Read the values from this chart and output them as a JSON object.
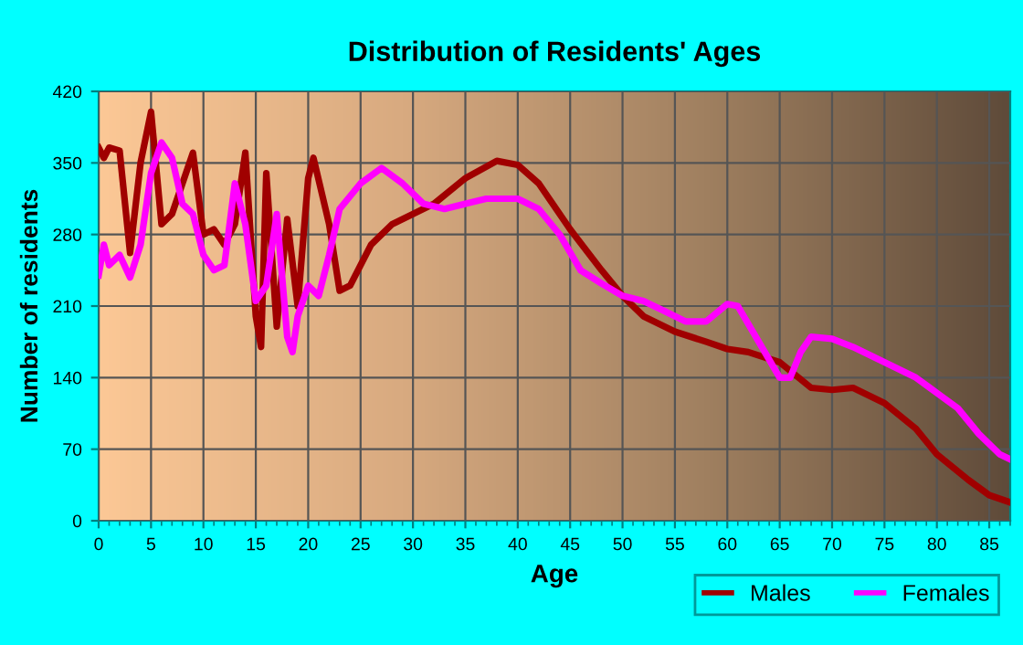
{
  "chart_data": {
    "type": "line",
    "title": "Distribution of Residents' Ages",
    "xlabel": "Age",
    "ylabel": "Number of residents",
    "xlim": [
      0,
      87
    ],
    "xticks": [
      0,
      5,
      10,
      15,
      20,
      25,
      30,
      35,
      40,
      45,
      50,
      55,
      60,
      65,
      70,
      75,
      80,
      85
    ],
    "ylim": [
      0,
      420
    ],
    "yticks": [
      0,
      70,
      140,
      210,
      280,
      350,
      420
    ],
    "grid": true,
    "legend": "bottom right",
    "line_style": "solid",
    "series": [
      {
        "name": "Males",
        "color": "#a00000",
        "x": [
          0,
          0.5,
          1,
          2,
          3,
          4,
          5,
          6,
          7,
          8,
          9,
          10,
          11,
          12,
          13,
          14,
          15,
          15.5,
          16,
          17,
          18,
          19,
          20,
          20.5,
          22,
          23,
          24,
          26,
          28,
          30,
          32,
          35,
          38,
          40,
          42,
          45,
          48,
          50,
          52,
          55,
          58,
          60,
          62,
          65,
          68,
          70,
          72,
          75,
          78,
          80,
          83,
          85,
          87
        ],
        "values": [
          365,
          355,
          365,
          362,
          262,
          350,
          400,
          290,
          300,
          330,
          360,
          280,
          285,
          270,
          290,
          360,
          200,
          170,
          340,
          190,
          295,
          210,
          335,
          355,
          290,
          225,
          230,
          270,
          290,
          300,
          310,
          335,
          352,
          348,
          330,
          285,
          245,
          220,
          200,
          185,
          175,
          168,
          165,
          155,
          130,
          128,
          130,
          115,
          90,
          65,
          40,
          25,
          18
        ]
      },
      {
        "name": "Females",
        "color": "#ff00ff",
        "x": [
          0,
          0.5,
          1,
          2,
          3,
          4,
          5,
          6,
          7,
          8,
          9,
          10,
          11,
          12,
          13,
          14,
          15,
          16,
          17,
          18,
          18.5,
          19,
          20,
          21,
          22,
          23,
          25,
          27,
          29,
          31,
          33,
          35,
          37,
          40,
          42,
          44,
          46,
          48,
          50,
          52,
          54,
          56,
          58,
          60,
          61,
          63,
          65,
          66,
          67,
          68,
          70,
          72,
          75,
          78,
          80,
          82,
          84,
          86,
          87
        ],
        "values": [
          240,
          270,
          250,
          260,
          238,
          270,
          340,
          370,
          355,
          310,
          300,
          260,
          245,
          250,
          330,
          290,
          215,
          230,
          300,
          180,
          165,
          200,
          230,
          220,
          260,
          305,
          330,
          345,
          330,
          310,
          305,
          310,
          315,
          315,
          305,
          280,
          245,
          232,
          220,
          215,
          205,
          195,
          195,
          212,
          210,
          175,
          140,
          140,
          165,
          180,
          178,
          170,
          155,
          140,
          125,
          110,
          85,
          65,
          60
        ]
      }
    ]
  }
}
